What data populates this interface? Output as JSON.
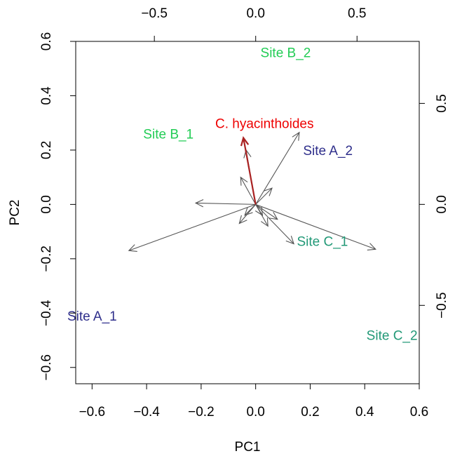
{
  "chart_data": {
    "type": "biplot",
    "xlabel": "PC1",
    "ylabel": "PC2",
    "xlim": [
      -0.66,
      0.6
    ],
    "ylim": [
      -0.66,
      0.6
    ],
    "x_ticks": [
      -0.6,
      -0.4,
      -0.2,
      0.0,
      0.2,
      0.4,
      0.6
    ],
    "y_ticks": [
      -0.6,
      -0.4,
      -0.2,
      0.0,
      0.2,
      0.4,
      0.6
    ],
    "x_tick_labels": [
      "−0.6",
      "−0.4",
      "−0.2",
      "0.0",
      "0.2",
      "0.4",
      "0.6"
    ],
    "y_tick_labels": [
      "−0.6",
      "−0.4",
      "−0.2",
      "0.0",
      "0.2",
      "0.4",
      "0.6"
    ],
    "top_axis": {
      "ticks": [
        -0.5,
        0.0,
        0.5
      ],
      "tick_labels": [
        "−0.5",
        "0.0",
        "0.5"
      ],
      "lim": [
        -0.888,
        0.807
      ]
    },
    "right_axis": {
      "ticks": [
        -0.5,
        0.0,
        0.5
      ],
      "tick_labels": [
        "−0.5",
        "0.0",
        "0.5"
      ],
      "lim": [
        -0.888,
        0.807
      ]
    },
    "sites": [
      {
        "label": "Site A_1",
        "x": -0.6,
        "y": -0.41,
        "color": "#2e2e8b"
      },
      {
        "label": "Site A_2",
        "x": 0.265,
        "y": 0.2,
        "color": "#2e2e8b"
      },
      {
        "label": "Site B_1",
        "x": -0.32,
        "y": 0.26,
        "color": "#22cc55"
      },
      {
        "label": "Site B_2",
        "x": 0.11,
        "y": 0.56,
        "color": "#22cc55"
      },
      {
        "label": "Site C_1",
        "x": 0.245,
        "y": -0.135,
        "color": "#229977"
      },
      {
        "label": "Site C_2",
        "x": 0.5,
        "y": -0.48,
        "color": "#229977"
      }
    ],
    "vectors": [
      {
        "x": -0.465,
        "y": -0.17
      },
      {
        "x": 0.44,
        "y": -0.165
      },
      {
        "x": 0.16,
        "y": 0.265
      },
      {
        "x": 0.14,
        "y": -0.145
      },
      {
        "x": -0.22,
        "y": 0.005
      },
      {
        "x": -0.035,
        "y": 0.2
      },
      {
        "x": -0.055,
        "y": 0.1
      },
      {
        "x": 0.06,
        "y": 0.06
      },
      {
        "x": -0.06,
        "y": -0.07
      },
      {
        "x": 0.045,
        "y": -0.08
      },
      {
        "x": 0.08,
        "y": -0.055
      },
      {
        "x": -0.04,
        "y": -0.04
      },
      {
        "x": 0.025,
        "y": -0.04
      }
    ],
    "species": [
      {
        "label": "C. hyacinthoides",
        "x": -0.05,
        "y": 0.24,
        "color": "#ee0000",
        "arrow_color": "#aa2222"
      }
    ],
    "vector_color": "#555555"
  }
}
